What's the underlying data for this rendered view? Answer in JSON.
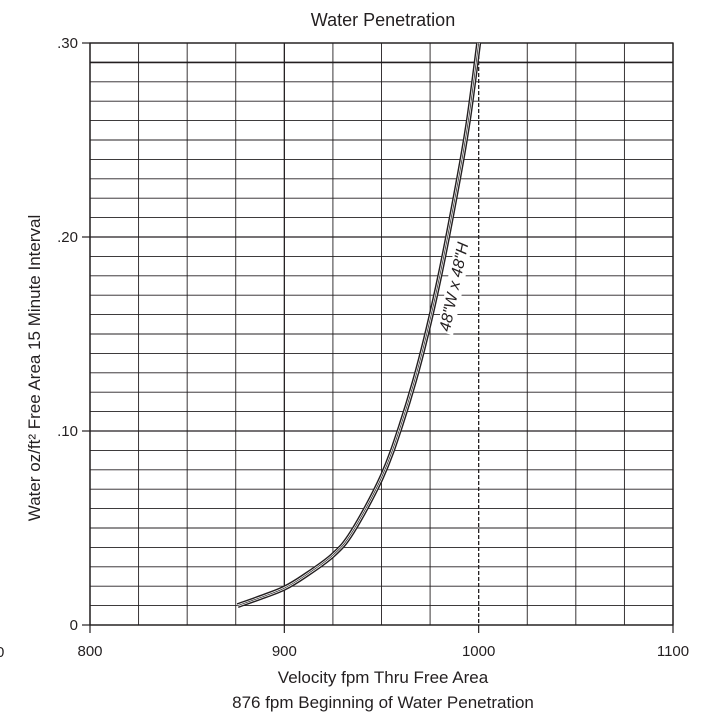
{
  "chart_data": {
    "type": "line",
    "title": "Water Penetration",
    "xlabel": "Velocity fpm Thru Free Area",
    "xlabel_note": "876 fpm Beginning of Water Penetration",
    "ylabel": "Water oz/ft² Free Area 15 Minute Interval",
    "xlim": [
      800,
      1100
    ],
    "ylim": [
      0,
      0.3
    ],
    "x_ticks": [
      800,
      900,
      1000,
      1100
    ],
    "x_tick_labels": [
      "800",
      "900",
      "1000",
      "1100"
    ],
    "x_left_cut_label": "0",
    "y_ticks": [
      0,
      0.1,
      0.2,
      0.3
    ],
    "y_tick_labels": [
      "0",
      ".10",
      ".20",
      ".30"
    ],
    "grid": true,
    "legend": "none",
    "colors": {
      "line": "#231f20",
      "grid": "#231f20",
      "background": "#ffffff"
    },
    "series": [
      {
        "name": "48\"W x 48\"H",
        "x": [
          876,
          890,
          900,
          910,
          925,
          935,
          950,
          960,
          970,
          980,
          990,
          995,
          1000
        ],
        "y": [
          0.01,
          0.015,
          0.019,
          0.025,
          0.036,
          0.048,
          0.076,
          0.103,
          0.137,
          0.18,
          0.232,
          0.262,
          0.3
        ]
      }
    ]
  }
}
